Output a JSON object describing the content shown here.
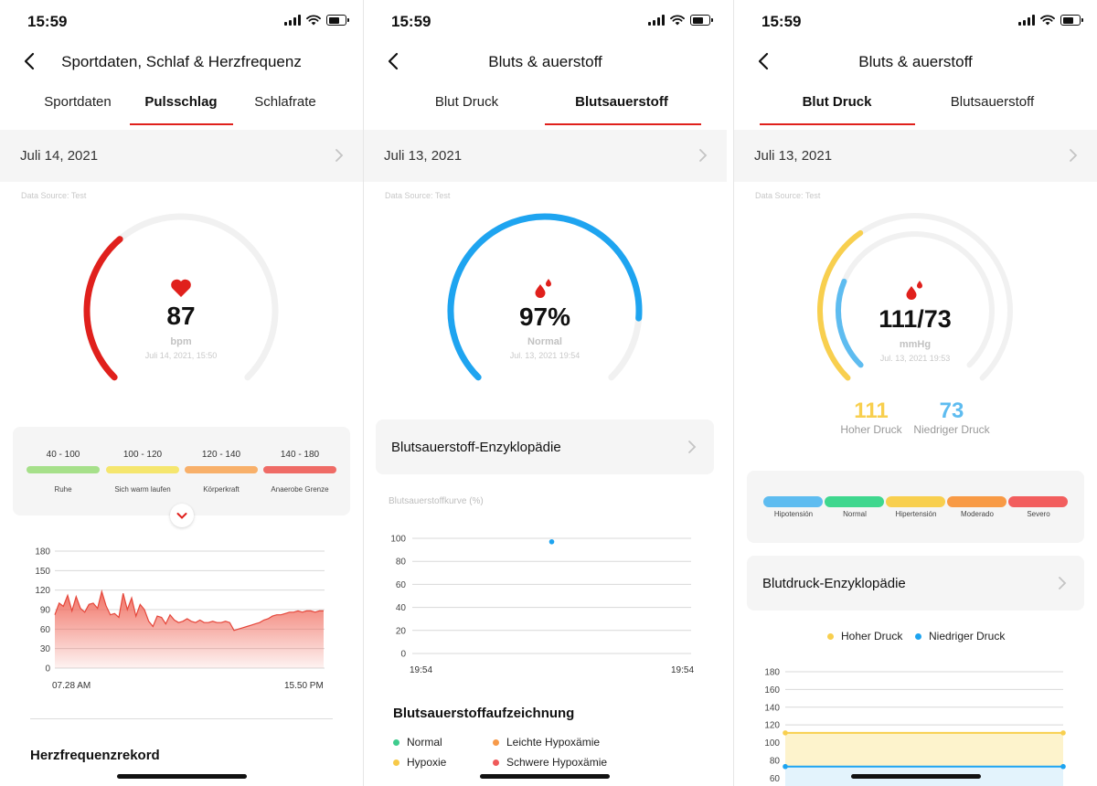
{
  "status": {
    "time": "15:59"
  },
  "screen1": {
    "title": "Sportdaten, Schlaf & Herzfrequenz",
    "tabs": [
      {
        "label": "Sportdaten"
      },
      {
        "label": "Pulsschlag",
        "active": true
      },
      {
        "label": "Schlafrate"
      }
    ],
    "date": "Juli 14, 2021",
    "source": "Data Source: Test",
    "gauge": {
      "value": "87",
      "unit": "bpm",
      "timestamp": "Juli 14, 2021, 15:50",
      "fraction": 0.35,
      "color": "#e0201c"
    },
    "zones": [
      {
        "range": "40 - 100",
        "label": "Ruhe",
        "color": "#a6e08a"
      },
      {
        "range": "100 - 120",
        "label": "Sich warm laufen",
        "color": "#f5e66e"
      },
      {
        "range": "120 - 140",
        "label": "Körperkraft",
        "color": "#f8b06a"
      },
      {
        "range": "140 - 180",
        "label": "Anaerobe Grenze",
        "color": "#ef6b66"
      }
    ],
    "chart_data": {
      "type": "area",
      "yticks": [
        180,
        150,
        120,
        90,
        60,
        30,
        0
      ],
      "ylim": [
        0,
        180
      ],
      "x_start_label": "07.28 AM",
      "x_end_label": "15.50 PM",
      "color": "#f06a5c",
      "values": [
        82,
        100,
        95,
        112,
        88,
        110,
        92,
        86,
        98,
        100,
        92,
        118,
        96,
        82,
        84,
        78,
        115,
        90,
        108,
        80,
        98,
        90,
        72,
        64,
        80,
        78,
        68,
        82,
        74,
        70,
        72,
        76,
        72,
        70,
        74,
        70,
        70,
        72,
        70,
        70,
        72,
        70,
        58,
        60,
        62,
        64,
        66,
        68,
        70,
        74,
        76,
        80,
        82,
        82,
        84,
        86,
        86,
        88,
        86,
        88,
        88,
        86,
        88,
        88
      ]
    },
    "record_title": "Herzfrequenzrekord"
  },
  "screen2": {
    "title": "Bluts & auerstoff",
    "tabs": [
      {
        "label": "Blut Druck"
      },
      {
        "label": "Blutsauerstoff",
        "active": true
      }
    ],
    "date": "Juli 13, 2021",
    "source": "Data Source: Test",
    "gauge": {
      "value": "97%",
      "unit": "Normal",
      "timestamp": "Jul. 13, 2021 19:54",
      "fraction": 0.85,
      "color": "#1ea4f0"
    },
    "encyclopedia": "Blutsauerstoff-Enzyklopädie",
    "curve_title": "Blutsauerstoffkurve (%)",
    "chart_data": {
      "type": "scatter",
      "yticks": [
        100,
        80,
        60,
        40,
        20,
        0
      ],
      "ylim": [
        0,
        100
      ],
      "x_labels": [
        "19:54",
        "19:54"
      ],
      "points": [
        {
          "x": 0.5,
          "y": 97
        }
      ],
      "color": "#1ea4f0"
    },
    "record_title": "Blutsauerstoffaufzeichnung",
    "legend": [
      {
        "label": "Normal",
        "color": "#3fcc8e"
      },
      {
        "label": "Leichte Hypoxämie",
        "color": "#f79a4a"
      },
      {
        "label": "Hypoxie",
        "color": "#f7c948"
      },
      {
        "label": "Schwere Hypoxämie",
        "color": "#ef5a5a"
      }
    ]
  },
  "screen3": {
    "title": "Bluts & auerstoff",
    "tabs": [
      {
        "label": "Blut Druck",
        "active": true
      },
      {
        "label": "Blutsauerstoff"
      }
    ],
    "date": "Juli 13, 2021",
    "source": "Data Source: Test",
    "gauge": {
      "value": "111/73",
      "unit": "mmHg",
      "timestamp": "Jul. 13, 2021 19:53",
      "outer_fraction": 0.37,
      "inner_fraction": 0.25,
      "outer_color": "#f8cf4e",
      "inner_color": "#5ebcf0"
    },
    "high": {
      "value": "111",
      "label": "Hoher Druck",
      "color": "#f8cf4e"
    },
    "low": {
      "value": "73",
      "label": "Niedriger Druck",
      "color": "#5ebcf0"
    },
    "categories": [
      {
        "label": "Hipotensión",
        "color": "#5ebcf0"
      },
      {
        "label": "Normal",
        "color": "#3fd78e"
      },
      {
        "label": "Hipertensión",
        "color": "#f8cf4e"
      },
      {
        "label": "Moderado",
        "color": "#f89a45"
      },
      {
        "label": "Severo",
        "color": "#f25e5e"
      }
    ],
    "encyclopedia": "Blutdruck-Enzyklopädie",
    "chart_legend": [
      {
        "label": "Hoher Druck",
        "color": "#f8cf4e"
      },
      {
        "label": "Niedriger Druck",
        "color": "#1ea4f0"
      }
    ],
    "chart_data": {
      "type": "line",
      "yticks": [
        180,
        160,
        140,
        120,
        100,
        80,
        60
      ],
      "ylim": [
        50,
        180
      ],
      "series": [
        {
          "name": "Hoher Druck",
          "values": [
            111,
            111
          ],
          "color": "#f8cf4e"
        },
        {
          "name": "Niedriger Druck",
          "values": [
            73,
            73
          ],
          "color": "#1ea4f0"
        }
      ]
    }
  }
}
